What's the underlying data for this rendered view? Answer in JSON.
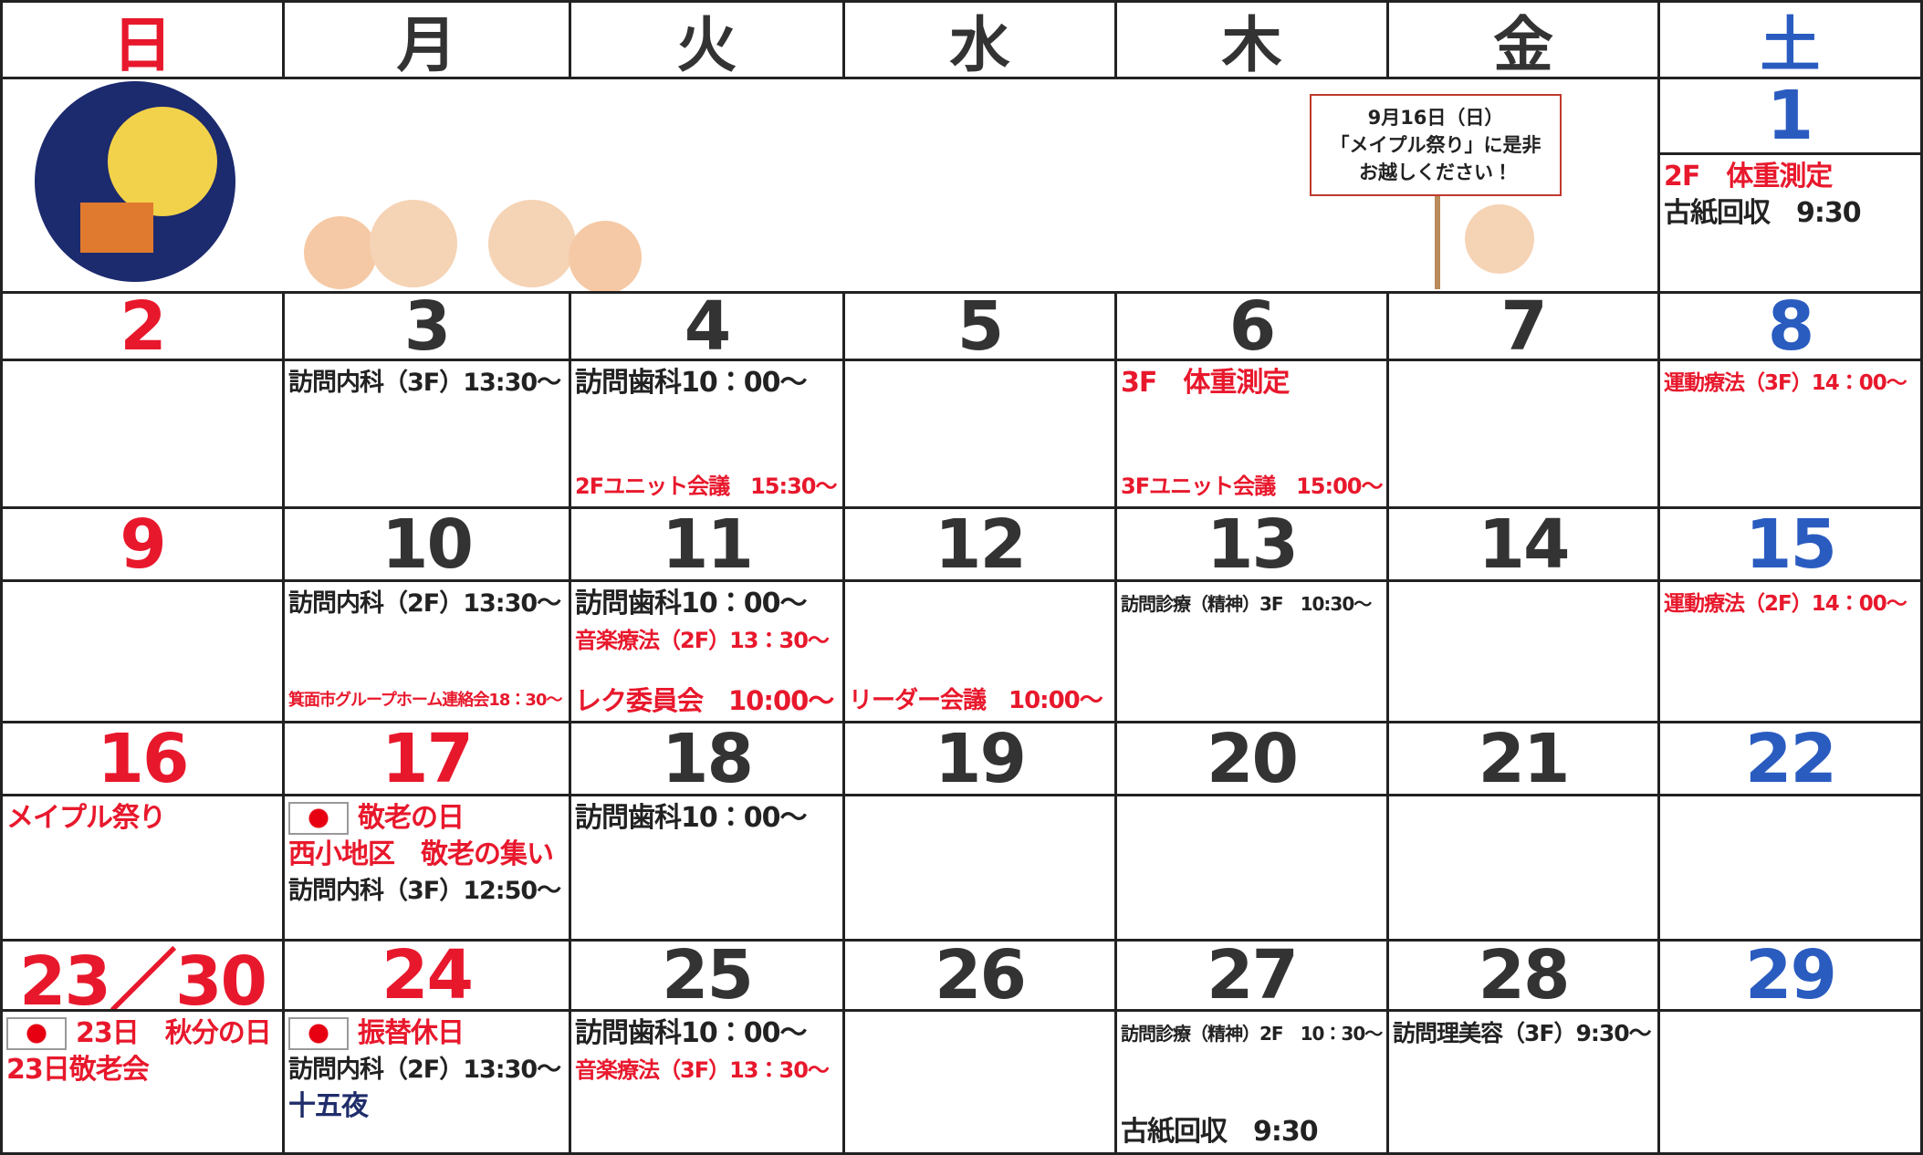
{
  "headers": [
    {
      "text": "日",
      "color": "#e8182c"
    },
    {
      "text": "月",
      "color": "#333333"
    },
    {
      "text": "火",
      "color": "#333333"
    },
    {
      "text": "水",
      "color": "#333333"
    },
    {
      "text": "木",
      "color": "#333333"
    },
    {
      "text": "金",
      "color": "#333333"
    },
    {
      "text": "土",
      "color": "#2a5cc0"
    }
  ],
  "notice": {
    "lines": [
      "9月16日（日）",
      "「メイプル祭り」に是非",
      "お越しください！"
    ]
  },
  "weeks": [
    {
      "days": [
        {
          "date": "1",
          "events": [
            {
              "text": "2F　体重測定",
              "color": "#e8182c"
            },
            {
              "text": "古紙回収　9:30",
              "color": "#222222"
            }
          ]
        }
      ]
    },
    {
      "days": [
        {
          "date": "2",
          "events": []
        },
        {
          "date": "3",
          "events": [
            {
              "text": "訪問内科（3F）13:30～",
              "color": "#222222"
            }
          ]
        },
        {
          "date": "4",
          "events": [
            {
              "text": "訪問歯科10：00～",
              "color": "#222222"
            },
            {
              "text": "2Fユニット会議　15:30～",
              "color": "#e8182c"
            }
          ]
        },
        {
          "date": "5",
          "events": []
        },
        {
          "date": "6",
          "events": [
            {
              "text": "3F　体重測定",
              "color": "#e8182c"
            },
            {
              "text": "3Fユニット会議　15:00～",
              "color": "#e8182c"
            }
          ]
        },
        {
          "date": "7",
          "events": []
        },
        {
          "date": "8",
          "events": [
            {
              "text": "運動療法（3F）14：00～",
              "color": "#e8182c"
            }
          ]
        }
      ]
    },
    {
      "days": [
        {
          "date": "9",
          "events": []
        },
        {
          "date": "10",
          "events": [
            {
              "text": "訪問内科（2F）13:30～",
              "color": "#222222"
            },
            {
              "text": "箕面市グループホーム連絡会18：30～",
              "color": "#e8182c"
            }
          ]
        },
        {
          "date": "11",
          "events": [
            {
              "text": "訪問歯科10：00～",
              "color": "#222222"
            },
            {
              "text": "音楽療法（2F）13：30～",
              "color": "#e8182c"
            },
            {
              "text": "レク委員会　10:00～",
              "color": "#e8182c"
            }
          ]
        },
        {
          "date": "12",
          "events": [
            {
              "text": "リーダー会議　10:00～",
              "color": "#e8182c"
            }
          ]
        },
        {
          "date": "13",
          "events": [
            {
              "text": "訪問診療（精神）3F　10:30～",
              "color": "#222222"
            }
          ]
        },
        {
          "date": "14",
          "events": []
        },
        {
          "date": "15",
          "events": [
            {
              "text": "運動療法（2F）14：00～",
              "color": "#e8182c"
            }
          ]
        }
      ]
    },
    {
      "days": [
        {
          "date": "16",
          "events": [
            {
              "text": "メイプル祭り",
              "color": "#e8182c"
            }
          ]
        },
        {
          "date": "17",
          "color": "#e8182c",
          "events": [
            {
              "text": "敬老の日",
              "color": "#e8182c",
              "icon": "flag"
            },
            {
              "text": "西小地区　敬老の集い",
              "color": "#e8182c"
            },
            {
              "text": "訪問内科（3F）12:50～",
              "color": "#222222"
            }
          ]
        },
        {
          "date": "18",
          "events": [
            {
              "text": "訪問歯科10：00～",
              "color": "#222222"
            }
          ]
        },
        {
          "date": "19",
          "events": []
        },
        {
          "date": "20",
          "events": []
        },
        {
          "date": "21",
          "events": []
        },
        {
          "date": "22",
          "events": []
        }
      ]
    },
    {
      "days": [
        {
          "date": "23／30",
          "events": [
            {
              "text": "23日　秋分の日",
              "color": "#e8182c",
              "icon": "flag"
            },
            {
              "text": "23日敬老会",
              "color": "#e8182c"
            }
          ]
        },
        {
          "date": "24",
          "color": "#e8182c",
          "events": [
            {
              "text": "振替休日",
              "color": "#e8182c",
              "icon": "flag"
            },
            {
              "text": "訪問内科（2F）13:30～",
              "color": "#222222"
            },
            {
              "text": "十五夜",
              "color": "#1f2d6b"
            }
          ]
        },
        {
          "date": "25",
          "events": [
            {
              "text": "訪問歯科10：00～",
              "color": "#222222"
            },
            {
              "text": "音楽療法（3F）13：30～",
              "color": "#e8182c"
            }
          ]
        },
        {
          "date": "26",
          "events": []
        },
        {
          "date": "27",
          "events": [
            {
              "text": "訪問診療（精神）2F　10：30～",
              "color": "#222222"
            },
            {
              "text": "古紙回収　9:30",
              "color": "#222222"
            }
          ]
        },
        {
          "date": "28",
          "events": [
            {
              "text": "訪問理美容（3F）9:30～",
              "color": "#222222"
            }
          ]
        },
        {
          "date": "29",
          "events": []
        }
      ]
    }
  ]
}
